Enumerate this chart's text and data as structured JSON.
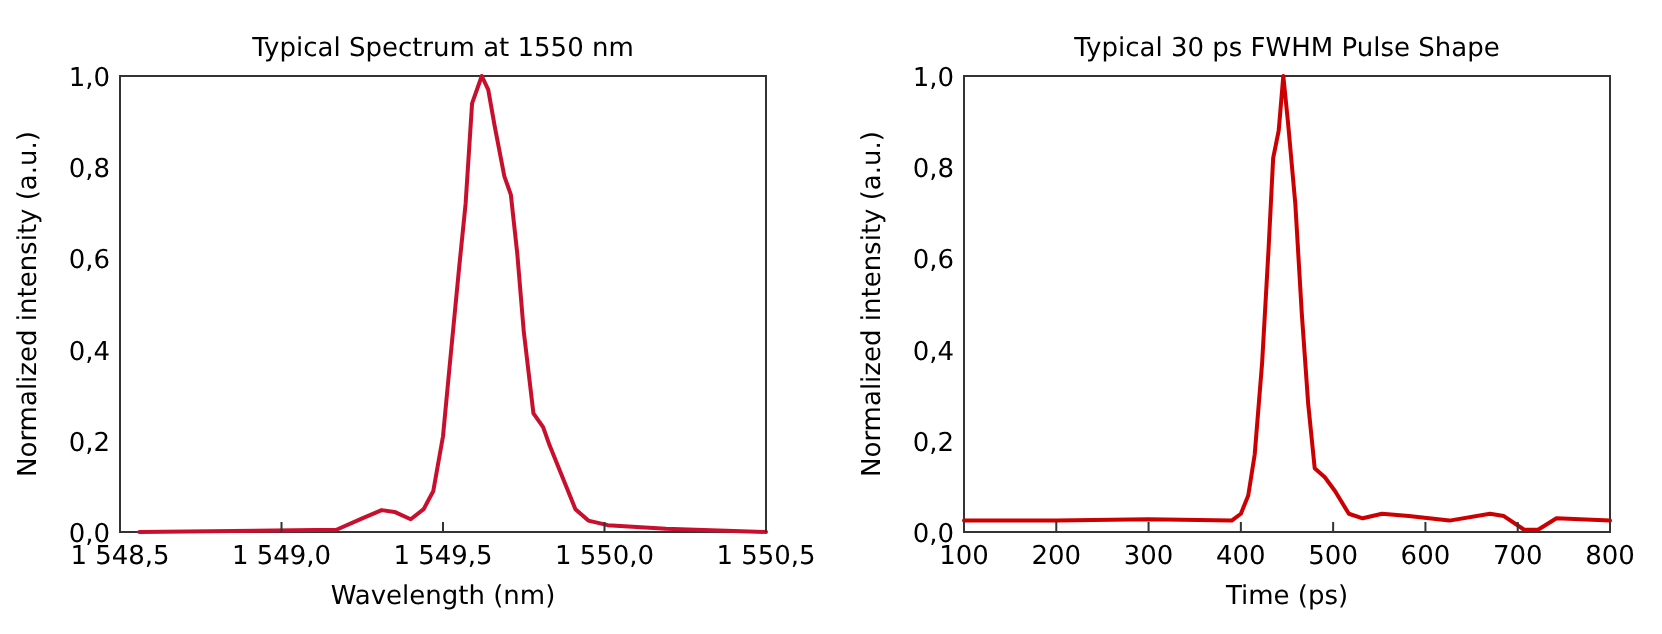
{
  "chart_data": [
    {
      "type": "line",
      "title": "Typical Spectrum at 1550 nm",
      "xlabel": "Wavelength (nm)",
      "ylabel": "Normalized intensity (a.u.)",
      "grid": false,
      "xlim": [
        1548.5,
        1550.5
      ],
      "xticks": [
        {
          "value": 1548.5,
          "label": "1 548,5"
        },
        {
          "value": 1549,
          "label": "1 549,0"
        },
        {
          "value": 1549.5,
          "label": "1 549,5"
        },
        {
          "value": 1550,
          "label": "1 550,0"
        },
        {
          "value": 1550.5,
          "label": "1 550,5"
        }
      ],
      "ylim": [
        0,
        1
      ],
      "yticks": [
        {
          "value": 0,
          "label": "0,0"
        },
        {
          "value": 0.2,
          "label": "0,2"
        },
        {
          "value": 0.4,
          "label": "0,4"
        },
        {
          "value": 0.6,
          "label": "0,6"
        },
        {
          "value": 0.8,
          "label": "0,8"
        },
        {
          "value": 1,
          "label": "1,0"
        }
      ],
      "series": [
        {
          "color": "#c8102e",
          "x": [
            1548.56,
            1549.17,
            1549.25,
            1549.31,
            1549.35,
            1549.4,
            1549.44,
            1549.47,
            1549.5,
            1549.52,
            1549.55,
            1549.57,
            1549.59,
            1549.62,
            1549.64,
            1549.66,
            1549.69,
            1549.71,
            1549.73,
            1549.75,
            1549.78,
            1549.81,
            1549.83,
            1549.87,
            1549.91,
            1549.95,
            1550.01,
            1550.19,
            1550.5
          ],
          "values": [
            0,
            0.005,
            0.03,
            0.048,
            0.044,
            0.028,
            0.05,
            0.09,
            0.21,
            0.36,
            0.58,
            0.72,
            0.94,
            1.0,
            0.97,
            0.89,
            0.78,
            0.74,
            0.61,
            0.44,
            0.26,
            0.23,
            0.19,
            0.12,
            0.05,
            0.025,
            0.015,
            0.007,
            0
          ]
        }
      ]
    },
    {
      "type": "line",
      "title": "Typical 30 ps FWHM Pulse Shape",
      "xlabel": "Time (ps)",
      "ylabel": "Normalized intensity (a.u.)",
      "grid": false,
      "xlim": [
        100,
        800
      ],
      "xticks": [
        100,
        200,
        300,
        400,
        500,
        600,
        700,
        800
      ],
      "ylim": [
        0,
        1
      ],
      "yticks": [
        {
          "value": 0,
          "label": "0,0"
        },
        {
          "value": 0.2,
          "label": "0,2"
        },
        {
          "value": 0.4,
          "label": "0,4"
        },
        {
          "value": 0.6,
          "label": "0,6"
        },
        {
          "value": 0.8,
          "label": "0,8"
        },
        {
          "value": 1,
          "label": "1,0"
        }
      ],
      "series": [
        {
          "color": "#cc0000",
          "x": [
            100,
            200,
            300,
            390,
            400,
            408,
            415,
            423,
            430,
            435,
            441,
            446,
            451,
            459,
            466,
            473,
            480,
            491,
            502,
            517,
            532,
            553,
            582,
            626,
            670,
            685,
            707,
            722,
            742,
            800
          ],
          "values": [
            0.025,
            0.025,
            0.028,
            0.025,
            0.04,
            0.08,
            0.17,
            0.37,
            0.62,
            0.82,
            0.88,
            1.0,
            0.9,
            0.72,
            0.48,
            0.28,
            0.14,
            0.12,
            0.09,
            0.04,
            0.03,
            0.04,
            0.035,
            0.025,
            0.04,
            0.035,
            0.005,
            0.005,
            0.03,
            0.025
          ]
        }
      ]
    }
  ]
}
